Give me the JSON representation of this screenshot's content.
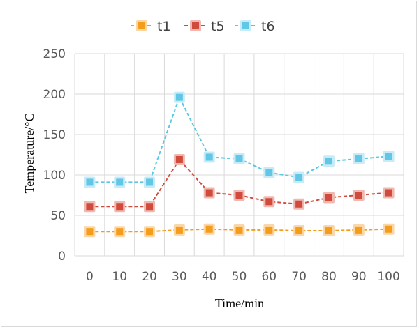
{
  "chart_data": {
    "type": "line",
    "title": "",
    "xlabel": "Time/min",
    "ylabel": "Temperature/°C",
    "categories": [
      "0",
      "10",
      "20",
      "30",
      "40",
      "50",
      "60",
      "70",
      "80",
      "90",
      "100"
    ],
    "ylim": [
      0,
      250
    ],
    "yticks": [
      0,
      50,
      100,
      150,
      200,
      250
    ],
    "grid": true,
    "legend_position": "top",
    "series": [
      {
        "name": "t1",
        "color": "#F59C1A",
        "marker_fill": "#F59C1A",
        "marker_glow": "#FAD7A8",
        "values": [
          30,
          30,
          30,
          32,
          33,
          32,
          32,
          31,
          31,
          32,
          33
        ]
      },
      {
        "name": "t5",
        "color": "#D04B3C",
        "marker_fill": "#D04B3C",
        "marker_glow": "#EFB8B1",
        "values": [
          61,
          61,
          61,
          119,
          78,
          75,
          67,
          64,
          72,
          75,
          78
        ]
      },
      {
        "name": "t6",
        "color": "#5BC8E3",
        "marker_fill": "#62C6E6",
        "marker_glow": "#C8ECF7",
        "values": [
          91,
          91,
          91,
          196,
          122,
          120,
          103,
          97,
          117,
          120,
          123
        ]
      }
    ]
  }
}
